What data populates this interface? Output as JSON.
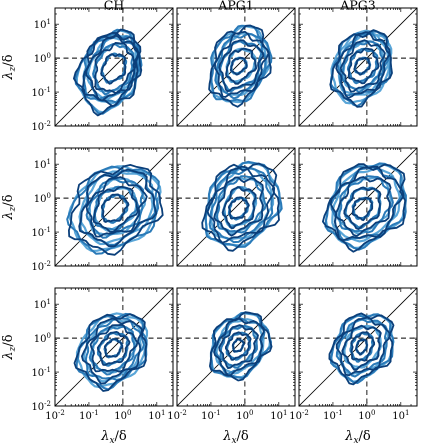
{
  "chart_data": {
    "type": "contour",
    "column_titles": [
      "CH",
      "APG1",
      "APG3"
    ],
    "xlabel": "λx/δ",
    "ylabel": "λz/δ",
    "xlabel_main": "λ",
    "xlabel_sub": "x",
    "xlabel_tail": "/δ",
    "ylabel_main": "λ",
    "ylabel_sub": "z",
    "ylabel_tail": "/δ",
    "xscale": "log",
    "yscale": "log",
    "xlim": [
      0.01,
      30
    ],
    "ylim": [
      0.01,
      30
    ],
    "tick_values": [
      0.01,
      0.1,
      1,
      10
    ],
    "tick_labels": [
      {
        "base": "10",
        "exp": "-2"
      },
      {
        "base": "10",
        "exp": "-1"
      },
      {
        "base": "10",
        "exp": "0"
      },
      {
        "base": "10",
        "exp": "1"
      }
    ],
    "reference_lines": {
      "vertical_x": 1,
      "horizontal_y": 1,
      "diagonal": "y = x"
    },
    "series_colors": [
      "#5aa6d8",
      "#2a7ab8",
      "#0b3f7a"
    ],
    "panels": [
      {
        "row": 0,
        "col": 0,
        "peak": [
          0.5,
          0.5
        ],
        "lobes": [
          {
            "min": [
              0.05,
              0.03
            ],
            "max": [
              3.0,
              5.0
            ]
          },
          {
            "min": [
              0.07,
              0.05
            ],
            "max": [
              3.0,
              6.0
            ]
          },
          {
            "min": [
              0.1,
              0.07
            ],
            "max": [
              2.5,
              4.0
            ]
          },
          {
            "min": [
              0.15,
              0.1
            ],
            "max": [
              2.0,
              2.5
            ]
          },
          {
            "min": [
              0.25,
              0.2
            ],
            "max": [
              1.2,
              1.3
            ]
          }
        ]
      },
      {
        "row": 0,
        "col": 1,
        "peak": [
          0.6,
          0.6
        ],
        "lobes": [
          {
            "min": [
              0.1,
              0.05
            ],
            "max": [
              5.0,
              8.0
            ]
          },
          {
            "min": [
              0.15,
              0.08
            ],
            "max": [
              4.0,
              5.0
            ]
          },
          {
            "min": [
              0.2,
              0.12
            ],
            "max": [
              3.0,
              3.0
            ]
          },
          {
            "min": [
              0.3,
              0.2
            ],
            "max": [
              2.0,
              1.8
            ]
          },
          {
            "min": [
              0.4,
              0.35
            ],
            "max": [
              1.1,
              1.0
            ]
          }
        ]
      },
      {
        "row": 0,
        "col": 2,
        "peak": [
          0.7,
          0.6
        ],
        "lobes": [
          {
            "min": [
              0.1,
              0.05
            ],
            "max": [
              5.0,
              6.0
            ]
          },
          {
            "min": [
              0.15,
              0.08
            ],
            "max": [
              4.0,
              5.0
            ]
          },
          {
            "min": [
              0.2,
              0.12
            ],
            "max": [
              3.0,
              3.0
            ]
          },
          {
            "min": [
              0.3,
              0.2
            ],
            "max": [
              2.0,
              1.8
            ]
          },
          {
            "min": [
              0.45,
              0.35
            ],
            "max": [
              1.2,
              1.0
            ]
          }
        ]
      },
      {
        "row": 1,
        "col": 0,
        "peak": [
          0.5,
          0.5
        ],
        "lobes": [
          {
            "min": [
              0.03,
              0.03
            ],
            "max": [
              12.0,
              8.0
            ]
          },
          {
            "min": [
              0.06,
              0.05
            ],
            "max": [
              8.0,
              6.0
            ]
          },
          {
            "min": [
              0.1,
              0.08
            ],
            "max": [
              4.0,
              3.5
            ]
          },
          {
            "min": [
              0.15,
              0.12
            ],
            "max": [
              2.5,
              2.0
            ]
          },
          {
            "min": [
              0.25,
              0.2
            ],
            "max": [
              1.3,
              1.2
            ]
          }
        ]
      },
      {
        "row": 1,
        "col": 1,
        "peak": [
          0.6,
          0.5
        ],
        "lobes": [
          {
            "min": [
              0.07,
              0.04
            ],
            "max": [
              10.0,
              10.0
            ]
          },
          {
            "min": [
              0.1,
              0.06
            ],
            "max": [
              6.0,
              7.0
            ]
          },
          {
            "min": [
              0.15,
              0.1
            ],
            "max": [
              3.5,
              4.0
            ]
          },
          {
            "min": [
              0.25,
              0.15
            ],
            "max": [
              2.0,
              2.0
            ]
          },
          {
            "min": [
              0.35,
              0.25
            ],
            "max": [
              1.2,
              1.0
            ]
          }
        ]
      },
      {
        "row": 1,
        "col": 2,
        "peak": [
          0.8,
          0.6
        ],
        "lobes": [
          {
            "min": [
              0.07,
              0.04
            ],
            "max": [
              14.0,
              10.0
            ]
          },
          {
            "min": [
              0.1,
              0.06
            ],
            "max": [
              9.0,
              7.0
            ]
          },
          {
            "min": [
              0.15,
              0.1
            ],
            "max": [
              5.0,
              4.0
            ]
          },
          {
            "min": [
              0.25,
              0.15
            ],
            "max": [
              2.5,
              2.0
            ]
          },
          {
            "min": [
              0.4,
              0.25
            ],
            "max": [
              1.4,
              1.0
            ]
          }
        ]
      },
      {
        "row": 2,
        "col": 0,
        "peak": [
          0.5,
          0.5
        ],
        "lobes": [
          {
            "min": [
              0.05,
              0.04
            ],
            "max": [
              5.0,
              5.0
            ]
          },
          {
            "min": [
              0.08,
              0.06
            ],
            "max": [
              3.5,
              3.5
            ]
          },
          {
            "min": [
              0.12,
              0.1
            ],
            "max": [
              2.2,
              2.2
            ]
          },
          {
            "min": [
              0.2,
              0.17
            ],
            "max": [
              1.4,
              1.4
            ]
          },
          {
            "min": [
              0.3,
              0.28
            ],
            "max": [
              0.9,
              0.9
            ]
          }
        ]
      },
      {
        "row": 2,
        "col": 1,
        "peak": [
          0.6,
          0.6
        ],
        "lobes": [
          {
            "min": [
              0.1,
              0.07
            ],
            "max": [
              5.0,
              5.0
            ]
          },
          {
            "min": [
              0.15,
              0.1
            ],
            "max": [
              3.5,
              3.5
            ]
          },
          {
            "min": [
              0.2,
              0.15
            ],
            "max": [
              2.2,
              2.2
            ]
          },
          {
            "min": [
              0.3,
              0.25
            ],
            "max": [
              1.4,
              1.4
            ]
          },
          {
            "min": [
              0.45,
              0.4
            ],
            "max": [
              0.9,
              0.9
            ]
          }
        ]
      },
      {
        "row": 2,
        "col": 2,
        "peak": [
          0.7,
          0.6
        ],
        "lobes": [
          {
            "min": [
              0.1,
              0.06
            ],
            "max": [
              6.0,
              5.0
            ]
          },
          {
            "min": [
              0.15,
              0.09
            ],
            "max": [
              4.0,
              3.5
            ]
          },
          {
            "min": [
              0.22,
              0.14
            ],
            "max": [
              2.5,
              2.2
            ]
          },
          {
            "min": [
              0.35,
              0.22
            ],
            "max": [
              1.5,
              1.4
            ]
          },
          {
            "min": [
              0.5,
              0.35
            ],
            "max": [
              1.0,
              0.9
            ]
          }
        ]
      }
    ]
  }
}
